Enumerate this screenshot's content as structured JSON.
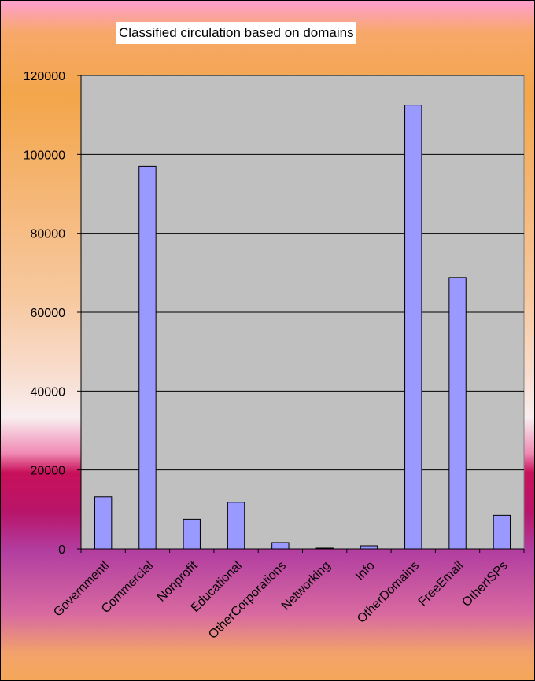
{
  "chart_data": {
    "type": "bar",
    "title": "Classified circulation based on domains",
    "xlabel": "",
    "ylabel": "",
    "categories": [
      "Governmentl",
      "Commercial",
      "Nonprofit",
      "Educational",
      "OtherCorporations",
      "Networking",
      "Info",
      "OtherDomains",
      "FreeEmail",
      "OtherISPs"
    ],
    "values": [
      13200,
      97000,
      7500,
      11800,
      1600,
      200,
      800,
      112500,
      68800,
      8500
    ],
    "ylim": [
      0,
      120000
    ],
    "yticks": [
      0,
      20000,
      40000,
      60000,
      80000,
      100000,
      120000
    ],
    "grid": true,
    "legend": "none",
    "colors": {
      "bar": "#9999ff",
      "plot_background": "#c0c0c0",
      "gridline": "#000000"
    }
  }
}
